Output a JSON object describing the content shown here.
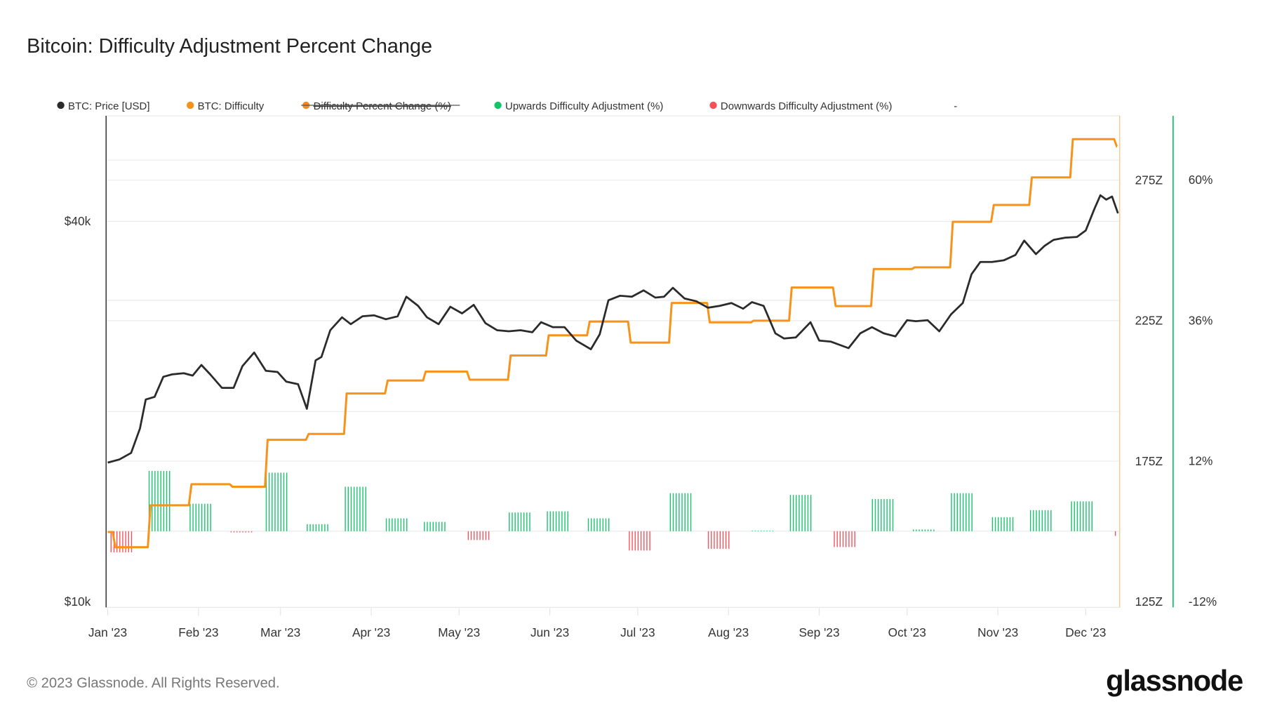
{
  "title": "Bitcoin: Difficulty Adjustment Percent Change",
  "footer": {
    "copyright": "© 2023 Glassnode. All Rights Reserved.",
    "logo": "glassnode"
  },
  "legend": [
    {
      "label": "BTC: Price [USD]",
      "color": "#2b2b2b",
      "hidden": false
    },
    {
      "label": "BTC: Difficulty",
      "color": "#f7931a",
      "hidden": false
    },
    {
      "label": "Difficulty Percent Change (%)",
      "color": "#f58b1f",
      "hidden": true
    },
    {
      "label": "Upwards Difficulty Adjustment (%)",
      "color": "#16c26a",
      "hidden": false
    },
    {
      "label": "Downwards Difficulty Adjustment (%)",
      "color": "#f6515b",
      "hidden": false
    },
    {
      "label": "-",
      "color": "",
      "hidden": false
    }
  ],
  "chart_data": {
    "type": "line",
    "title": "Bitcoin: Difficulty Adjustment Percent Change",
    "x_ticks": [
      "Jan '23",
      "Feb '23",
      "Mar '23",
      "Apr '23",
      "May '23",
      "Jun '23",
      "Jul '23",
      "Aug '23",
      "Sep '23",
      "Oct '23",
      "Nov '23",
      "Dec '23"
    ],
    "x_tick_dates": [
      "2023-01-01",
      "2023-02-01",
      "2023-03-01",
      "2023-04-01",
      "2023-05-01",
      "2023-06-01",
      "2023-07-01",
      "2023-08-01",
      "2023-09-01",
      "2023-10-01",
      "2023-11-01",
      "2023-12-01"
    ],
    "xlim": [
      "2023-01-01",
      "2023-12-12"
    ],
    "axes": {
      "price": {
        "scale": "log",
        "unit": "USD",
        "ticks": [
          "$40k",
          "$10k"
        ],
        "tick_values": [
          40000,
          10000
        ]
      },
      "difficulty": {
        "ticks": [
          "275Z",
          "225Z",
          "175Z",
          "125Z"
        ],
        "tick_values": [
          275,
          225,
          175,
          125
        ],
        "ylim": [
          125,
          300
        ]
      },
      "percent": {
        "ticks": [
          "60%",
          "36%",
          "12%",
          "-12%"
        ],
        "tick_values": [
          60,
          36,
          12,
          -12
        ]
      }
    },
    "grid": true,
    "legend_position": "top",
    "series": [
      {
        "name": "BTC: Price [USD]",
        "axis": "price",
        "unit": "k USD",
        "color": "#2b2b2b",
        "points": [
          [
            "2023-01-01",
            16.6
          ],
          [
            "2023-01-05",
            16.8
          ],
          [
            "2023-01-09",
            17.2
          ],
          [
            "2023-01-12",
            18.8
          ],
          [
            "2023-01-14",
            20.9
          ],
          [
            "2023-01-17",
            21.1
          ],
          [
            "2023-01-20",
            22.7
          ],
          [
            "2023-01-23",
            22.9
          ],
          [
            "2023-01-27",
            23.0
          ],
          [
            "2023-01-30",
            22.8
          ],
          [
            "2023-02-02",
            23.7
          ],
          [
            "2023-02-05",
            22.9
          ],
          [
            "2023-02-09",
            21.8
          ],
          [
            "2023-02-13",
            21.8
          ],
          [
            "2023-02-16",
            23.6
          ],
          [
            "2023-02-20",
            24.8
          ],
          [
            "2023-02-24",
            23.2
          ],
          [
            "2023-02-28",
            23.1
          ],
          [
            "2023-03-03",
            22.3
          ],
          [
            "2023-03-07",
            22.1
          ],
          [
            "2023-03-10",
            20.2
          ],
          [
            "2023-03-13",
            24.1
          ],
          [
            "2023-03-15",
            24.4
          ],
          [
            "2023-03-18",
            26.9
          ],
          [
            "2023-03-22",
            28.2
          ],
          [
            "2023-03-25",
            27.5
          ],
          [
            "2023-03-29",
            28.3
          ],
          [
            "2023-04-02",
            28.4
          ],
          [
            "2023-04-06",
            28.0
          ],
          [
            "2023-04-10",
            28.3
          ],
          [
            "2023-04-13",
            30.4
          ],
          [
            "2023-04-17",
            29.4
          ],
          [
            "2023-04-20",
            28.2
          ],
          [
            "2023-04-24",
            27.5
          ],
          [
            "2023-04-28",
            29.3
          ],
          [
            "2023-05-02",
            28.6
          ],
          [
            "2023-05-06",
            29.5
          ],
          [
            "2023-05-10",
            27.6
          ],
          [
            "2023-05-14",
            26.9
          ],
          [
            "2023-05-18",
            26.8
          ],
          [
            "2023-05-22",
            26.9
          ],
          [
            "2023-05-26",
            26.7
          ],
          [
            "2023-05-29",
            27.7
          ],
          [
            "2023-06-02",
            27.2
          ],
          [
            "2023-06-06",
            27.2
          ],
          [
            "2023-06-10",
            25.9
          ],
          [
            "2023-06-15",
            25.1
          ],
          [
            "2023-06-18",
            26.5
          ],
          [
            "2023-06-21",
            30.0
          ],
          [
            "2023-06-25",
            30.5
          ],
          [
            "2023-06-29",
            30.4
          ],
          [
            "2023-07-03",
            31.1
          ],
          [
            "2023-07-07",
            30.3
          ],
          [
            "2023-07-10",
            30.4
          ],
          [
            "2023-07-13",
            31.4
          ],
          [
            "2023-07-17",
            30.2
          ],
          [
            "2023-07-21",
            29.9
          ],
          [
            "2023-07-25",
            29.2
          ],
          [
            "2023-07-29",
            29.4
          ],
          [
            "2023-08-02",
            29.7
          ],
          [
            "2023-08-06",
            29.1
          ],
          [
            "2023-08-09",
            29.8
          ],
          [
            "2023-08-13",
            29.4
          ],
          [
            "2023-08-17",
            26.6
          ],
          [
            "2023-08-20",
            26.1
          ],
          [
            "2023-08-24",
            26.2
          ],
          [
            "2023-08-29",
            27.7
          ],
          [
            "2023-09-01",
            25.9
          ],
          [
            "2023-09-05",
            25.8
          ],
          [
            "2023-09-11",
            25.2
          ],
          [
            "2023-09-15",
            26.6
          ],
          [
            "2023-09-19",
            27.2
          ],
          [
            "2023-09-23",
            26.6
          ],
          [
            "2023-09-27",
            26.3
          ],
          [
            "2023-10-01",
            27.9
          ],
          [
            "2023-10-04",
            27.8
          ],
          [
            "2023-10-08",
            27.9
          ],
          [
            "2023-10-12",
            26.8
          ],
          [
            "2023-10-16",
            28.5
          ],
          [
            "2023-10-20",
            29.7
          ],
          [
            "2023-10-23",
            33.0
          ],
          [
            "2023-10-26",
            34.5
          ],
          [
            "2023-10-30",
            34.5
          ],
          [
            "2023-11-03",
            34.7
          ],
          [
            "2023-11-07",
            35.4
          ],
          [
            "2023-11-10",
            37.3
          ],
          [
            "2023-11-14",
            35.5
          ],
          [
            "2023-11-17",
            36.6
          ],
          [
            "2023-11-20",
            37.4
          ],
          [
            "2023-11-24",
            37.7
          ],
          [
            "2023-11-28",
            37.8
          ],
          [
            "2023-12-01",
            38.7
          ],
          [
            "2023-12-04",
            41.9
          ],
          [
            "2023-12-06",
            44.0
          ],
          [
            "2023-12-08",
            43.3
          ],
          [
            "2023-12-10",
            43.8
          ],
          [
            "2023-12-12",
            41.2
          ]
        ]
      },
      {
        "name": "BTC: Difficulty",
        "axis": "difficulty",
        "unit": "Z",
        "color": "#f7931a",
        "points": [
          [
            "2023-01-01",
            149.8
          ],
          [
            "2023-01-03",
            144.4
          ],
          [
            "2023-01-15",
            159.3
          ],
          [
            "2023-01-29",
            166.8
          ],
          [
            "2023-02-12",
            165.9
          ],
          [
            "2023-02-24",
            182.6
          ],
          [
            "2023-03-10",
            184.7
          ],
          [
            "2023-03-23",
            199.1
          ],
          [
            "2023-04-06",
            203.7
          ],
          [
            "2023-04-19",
            206.9
          ],
          [
            "2023-05-04",
            204.0
          ],
          [
            "2023-05-18",
            212.6
          ],
          [
            "2023-05-31",
            219.8
          ],
          [
            "2023-06-14",
            224.7
          ],
          [
            "2023-06-28",
            217.2
          ],
          [
            "2023-07-12",
            231.3
          ],
          [
            "2023-07-25",
            224.4
          ],
          [
            "2023-08-09",
            225.0
          ],
          [
            "2023-08-22",
            236.8
          ],
          [
            "2023-09-06",
            230.2
          ],
          [
            "2023-09-19",
            243.4
          ],
          [
            "2023-10-03",
            244.0
          ],
          [
            "2023-10-16",
            260.2
          ],
          [
            "2023-10-30",
            266.2
          ],
          [
            "2023-11-12",
            276.0
          ],
          [
            "2023-11-26",
            289.6
          ],
          [
            "2023-12-11",
            287.0
          ]
        ]
      },
      {
        "name": "Difficulty Adjustment (%)",
        "axis": "percent",
        "unit": "%",
        "colors": {
          "up": "#16c26a",
          "down": "#f6515b"
        },
        "points": [
          [
            "2023-01-02",
            -3.6
          ],
          [
            "2023-01-15",
            10.3
          ],
          [
            "2023-01-29",
            4.7
          ],
          [
            "2023-02-12",
            -0.2
          ],
          [
            "2023-02-24",
            10.0
          ],
          [
            "2023-03-10",
            1.2
          ],
          [
            "2023-03-23",
            7.6
          ],
          [
            "2023-04-06",
            2.2
          ],
          [
            "2023-04-19",
            1.6
          ],
          [
            "2023-05-04",
            -1.5
          ],
          [
            "2023-05-18",
            3.2
          ],
          [
            "2023-05-31",
            3.4
          ],
          [
            "2023-06-14",
            2.2
          ],
          [
            "2023-06-28",
            -3.3
          ],
          [
            "2023-07-12",
            6.5
          ],
          [
            "2023-07-25",
            -3.0
          ],
          [
            "2023-08-09",
            0.1
          ],
          [
            "2023-08-22",
            6.2
          ],
          [
            "2023-09-06",
            -2.7
          ],
          [
            "2023-09-19",
            5.5
          ],
          [
            "2023-10-03",
            0.3
          ],
          [
            "2023-10-16",
            6.5
          ],
          [
            "2023-10-30",
            2.4
          ],
          [
            "2023-11-12",
            3.6
          ],
          [
            "2023-11-26",
            5.1
          ],
          [
            "2023-12-11",
            -0.8
          ]
        ]
      }
    ]
  }
}
